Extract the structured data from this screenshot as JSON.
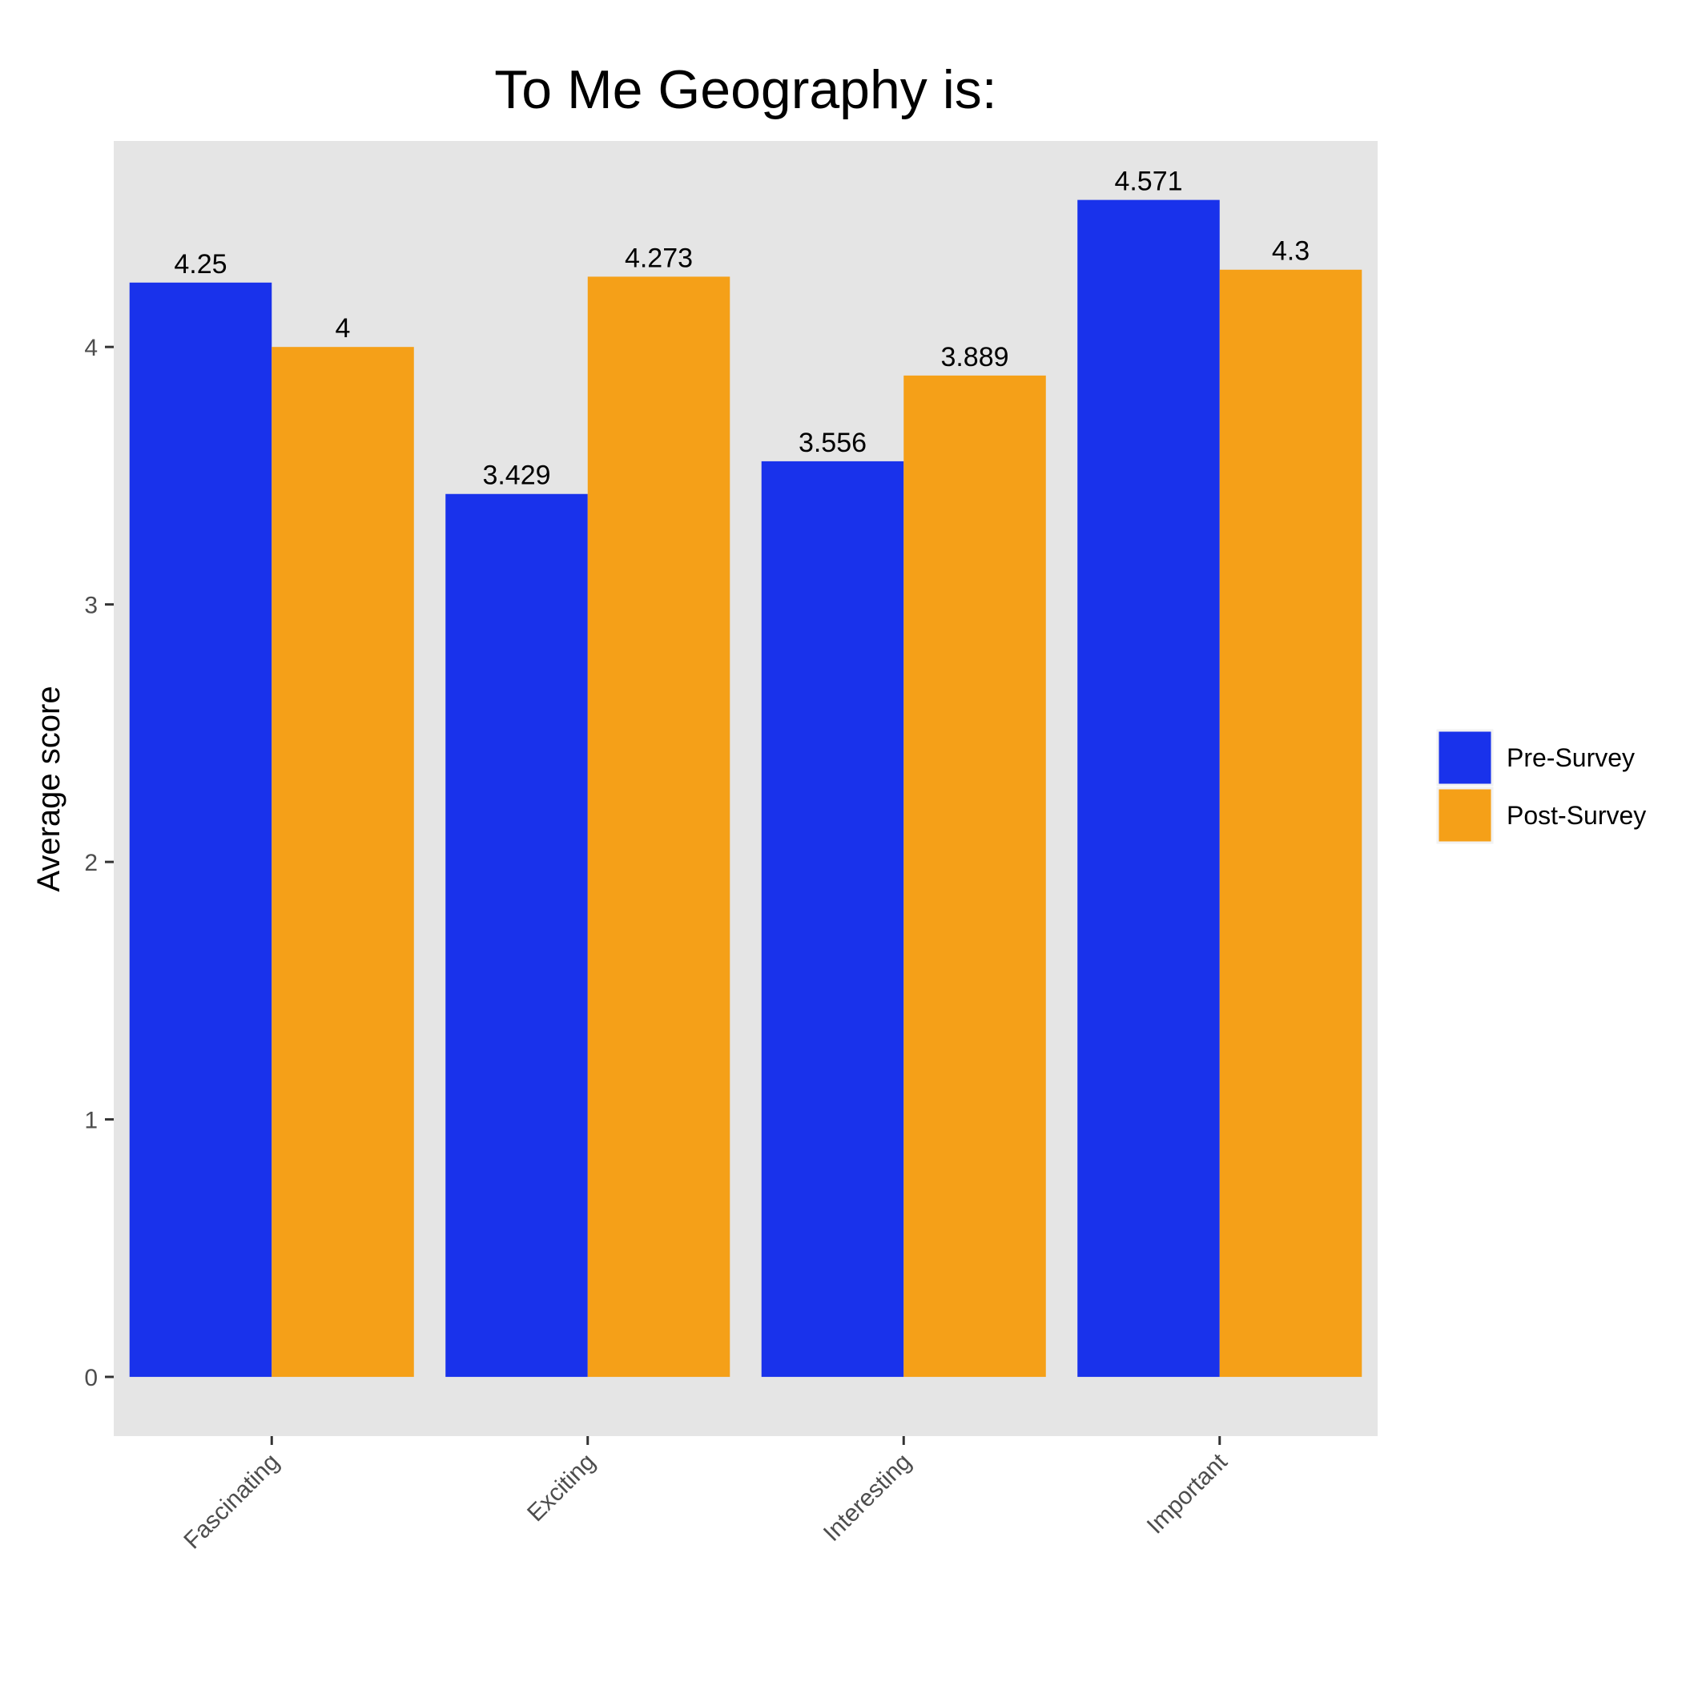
{
  "chart_data": {
    "type": "bar",
    "title": "To Me Geography is:",
    "xlabel": "",
    "ylabel": "Average score",
    "categories": [
      "Fascinating",
      "Exciting",
      "Interesting",
      "Important"
    ],
    "series": [
      {
        "name": "Pre-Survey",
        "color": "#1932eb",
        "values": [
          4.25,
          3.429,
          3.556,
          4.571
        ],
        "labels": [
          "4.25",
          "3.429",
          "3.556",
          "4.571"
        ]
      },
      {
        "name": "Post-Survey",
        "color": "#f5a018",
        "values": [
          4,
          4.273,
          3.889,
          4.3
        ],
        "labels": [
          "4",
          "4.273",
          "3.889",
          "4.3"
        ]
      }
    ],
    "yticks": [
      0,
      1,
      2,
      3,
      4
    ],
    "ytick_labels": [
      "0",
      "1",
      "2",
      "3",
      "4"
    ],
    "ylim": [
      -0.23,
      4.8
    ],
    "grid": false,
    "panel_background": "#e5e5e5",
    "legend_position": "right",
    "x_tick_label_rotation": "45 degrees"
  }
}
